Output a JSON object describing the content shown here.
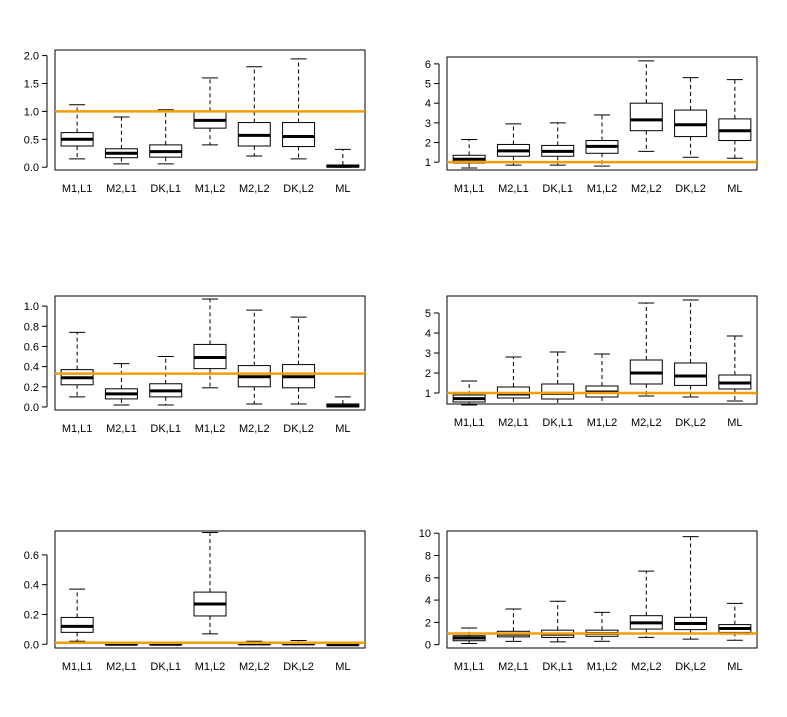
{
  "colors": {
    "reference_line": "#F29D00",
    "box_outline": "#000000",
    "background": "#FFFFFF"
  },
  "chart_data": [
    {
      "type": "boxplot",
      "position": "row-1-left",
      "title": "",
      "xlabel": "",
      "ylabel": "",
      "categories": [
        "M1,L1",
        "M2,L1",
        "DK,L1",
        "M1,L2",
        "M2,L2",
        "DK,L2",
        "ML"
      ],
      "ylim": [
        -0.05,
        2.1
      ],
      "yticks": [
        "0.0",
        "0.5",
        "1.0",
        "1.5",
        "2.0"
      ],
      "reference_line": 1.0,
      "boxes": [
        {
          "min": 0.15,
          "q1": 0.38,
          "median": 0.5,
          "q3": 0.62,
          "max": 1.12
        },
        {
          "min": 0.06,
          "q1": 0.17,
          "median": 0.25,
          "q3": 0.33,
          "max": 0.9
        },
        {
          "min": 0.06,
          "q1": 0.18,
          "median": 0.28,
          "q3": 0.4,
          "max": 1.03
        },
        {
          "min": 0.4,
          "q1": 0.7,
          "median": 0.84,
          "q3": 1.0,
          "max": 1.6
        },
        {
          "min": 0.2,
          "q1": 0.38,
          "median": 0.57,
          "q3": 0.8,
          "max": 1.8
        },
        {
          "min": 0.15,
          "q1": 0.37,
          "median": 0.55,
          "q3": 0.8,
          "max": 1.94
        },
        {
          "min": 0.0,
          "q1": 0.0,
          "median": 0.02,
          "q3": 0.04,
          "max": 0.32
        }
      ]
    },
    {
      "type": "boxplot",
      "position": "row-1-right",
      "title": "",
      "xlabel": "",
      "ylabel": "",
      "categories": [
        "M1,L1",
        "M2,L1",
        "DK,L1",
        "M1,L2",
        "M2,L2",
        "DK,L2",
        "ML"
      ],
      "ylim": [
        0.6,
        6.35
      ],
      "yticks": [
        "1",
        "2",
        "3",
        "4",
        "5",
        "6"
      ],
      "reference_line": 1.0,
      "boxes": [
        {
          "min": 0.7,
          "q1": 0.95,
          "median": 1.15,
          "q3": 1.35,
          "max": 2.15
        },
        {
          "min": 0.85,
          "q1": 1.3,
          "median": 1.57,
          "q3": 1.9,
          "max": 2.95
        },
        {
          "min": 0.85,
          "q1": 1.3,
          "median": 1.55,
          "q3": 1.85,
          "max": 3.0
        },
        {
          "min": 0.8,
          "q1": 1.45,
          "median": 1.8,
          "q3": 2.1,
          "max": 3.4
        },
        {
          "min": 1.55,
          "q1": 2.6,
          "median": 3.15,
          "q3": 4.0,
          "max": 6.15
        },
        {
          "min": 1.25,
          "q1": 2.3,
          "median": 2.9,
          "q3": 3.65,
          "max": 5.3
        },
        {
          "min": 1.2,
          "q1": 2.1,
          "median": 2.6,
          "q3": 3.2,
          "max": 5.2
        }
      ]
    },
    {
      "type": "boxplot",
      "position": "row-2-left",
      "title": "",
      "xlabel": "",
      "ylabel": "",
      "categories": [
        "M1,L1",
        "M2,L1",
        "DK,L1",
        "M1,L2",
        "M2,L2",
        "DK,L2",
        "ML"
      ],
      "ylim": [
        -0.03,
        1.1
      ],
      "yticks": [
        "0.0",
        "0.2",
        "0.4",
        "0.6",
        "0.8",
        "1.0"
      ],
      "reference_line": 0.33,
      "boxes": [
        {
          "min": 0.1,
          "q1": 0.22,
          "median": 0.29,
          "q3": 0.37,
          "max": 0.74
        },
        {
          "min": 0.02,
          "q1": 0.08,
          "median": 0.13,
          "q3": 0.18,
          "max": 0.43
        },
        {
          "min": 0.02,
          "q1": 0.1,
          "median": 0.16,
          "q3": 0.23,
          "max": 0.5
        },
        {
          "min": 0.19,
          "q1": 0.38,
          "median": 0.49,
          "q3": 0.62,
          "max": 1.07
        },
        {
          "min": 0.03,
          "q1": 0.2,
          "median": 0.3,
          "q3": 0.41,
          "max": 0.96
        },
        {
          "min": 0.03,
          "q1": 0.19,
          "median": 0.3,
          "q3": 0.42,
          "max": 0.89
        },
        {
          "min": 0.0,
          "q1": 0.0,
          "median": 0.01,
          "q3": 0.03,
          "max": 0.1
        }
      ]
    },
    {
      "type": "boxplot",
      "position": "row-2-right",
      "title": "",
      "xlabel": "",
      "ylabel": "",
      "categories": [
        "M1,L1",
        "M2,L1",
        "DK,L1",
        "M1,L2",
        "M2,L2",
        "DK,L2",
        "ML"
      ],
      "ylim": [
        0.45,
        5.85
      ],
      "yticks": [
        "1",
        "2",
        "3",
        "4",
        "5"
      ],
      "reference_line": 1.0,
      "boxes": [
        {
          "min": 0.4,
          "q1": 0.55,
          "median": 0.72,
          "q3": 0.9,
          "max": 1.6
        },
        {
          "min": 0.45,
          "q1": 0.75,
          "median": 0.95,
          "q3": 1.3,
          "max": 2.8
        },
        {
          "min": 0.45,
          "q1": 0.7,
          "median": 0.98,
          "q3": 1.45,
          "max": 3.05
        },
        {
          "min": 0.45,
          "q1": 0.8,
          "median": 1.05,
          "q3": 1.35,
          "max": 2.95
        },
        {
          "min": 0.85,
          "q1": 1.45,
          "median": 2.0,
          "q3": 2.65,
          "max": 5.5
        },
        {
          "min": 0.8,
          "q1": 1.38,
          "median": 1.85,
          "q3": 2.5,
          "max": 5.65
        },
        {
          "min": 0.6,
          "q1": 1.2,
          "median": 1.5,
          "q3": 1.9,
          "max": 3.85
        }
      ]
    },
    {
      "type": "boxplot",
      "position": "row-3-left",
      "title": "",
      "xlabel": "",
      "ylabel": "",
      "categories": [
        "M1,L1",
        "M2,L1",
        "DK,L1",
        "M1,L2",
        "M2,L2",
        "DK,L2",
        "ML"
      ],
      "ylim": [
        -0.025,
        0.76
      ],
      "yticks": [
        "0.0",
        "0.2",
        "0.4",
        "0.6"
      ],
      "reference_line": 0.01,
      "boxes": [
        {
          "min": 0.02,
          "q1": 0.08,
          "median": 0.12,
          "q3": 0.18,
          "max": 0.37
        },
        {
          "min": 0.0,
          "q1": 0.0,
          "median": 0.0,
          "q3": 0.002,
          "max": 0.01
        },
        {
          "min": 0.0,
          "q1": 0.0,
          "median": 0.0,
          "q3": 0.002,
          "max": 0.01
        },
        {
          "min": 0.07,
          "q1": 0.19,
          "median": 0.27,
          "q3": 0.35,
          "max": 0.75
        },
        {
          "min": 0.0,
          "q1": 0.0,
          "median": 0.003,
          "q3": 0.006,
          "max": 0.02
        },
        {
          "min": 0.0,
          "q1": 0.0,
          "median": 0.003,
          "q3": 0.006,
          "max": 0.025
        },
        {
          "min": -0.005,
          "q1": -0.004,
          "median": -0.003,
          "q3": -0.001,
          "max": 0.0
        }
      ]
    },
    {
      "type": "boxplot",
      "position": "row-3-right",
      "title": "",
      "xlabel": "",
      "ylabel": "",
      "categories": [
        "M1,L1",
        "M2,L1",
        "DK,L1",
        "M1,L2",
        "M2,L2",
        "DK,L2",
        "ML"
      ],
      "ylim": [
        -0.3,
        10.2
      ],
      "yticks": [
        "0",
        "2",
        "4",
        "6",
        "8",
        "10"
      ],
      "reference_line": 1.0,
      "boxes": [
        {
          "min": 0.1,
          "q1": 0.35,
          "median": 0.6,
          "q3": 0.8,
          "max": 1.5
        },
        {
          "min": 0.3,
          "q1": 0.7,
          "median": 0.95,
          "q3": 1.2,
          "max": 3.2
        },
        {
          "min": 0.25,
          "q1": 0.65,
          "median": 0.95,
          "q3": 1.3,
          "max": 3.9
        },
        {
          "min": 0.3,
          "q1": 0.75,
          "median": 1.0,
          "q3": 1.3,
          "max": 2.9
        },
        {
          "min": 0.65,
          "q1": 1.4,
          "median": 1.95,
          "q3": 2.6,
          "max": 6.6
        },
        {
          "min": 0.5,
          "q1": 1.35,
          "median": 1.9,
          "q3": 2.45,
          "max": 9.7
        },
        {
          "min": 0.4,
          "q1": 1.1,
          "median": 1.45,
          "q3": 1.8,
          "max": 3.7
        }
      ]
    }
  ]
}
